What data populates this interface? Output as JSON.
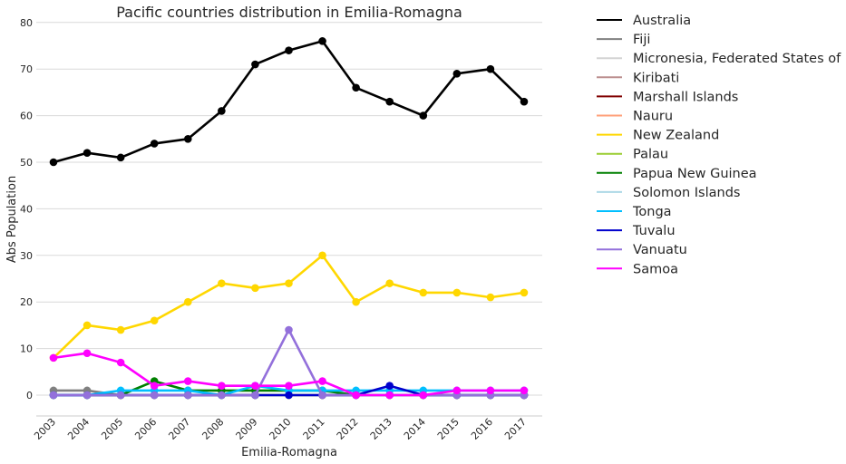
{
  "chart_data": {
    "type": "line",
    "title": "Pacific countries distribution in Emilia-Romagna",
    "xlabel": "Emilia-Romagna",
    "ylabel": "Abs Population",
    "categories": [
      "2003",
      "2004",
      "2005",
      "2006",
      "2007",
      "2008",
      "2009",
      "2010",
      "2011",
      "2012",
      "2013",
      "2014",
      "2015",
      "2016",
      "2017"
    ],
    "yticks": [
      0,
      10,
      20,
      30,
      40,
      50,
      60,
      70,
      80
    ],
    "ylim": [
      -4.5,
      80
    ],
    "grid": "horizontal",
    "legend_position": "outside-right",
    "series": [
      {
        "name": "Australia",
        "color": "#000000",
        "values": [
          50,
          52,
          51,
          54,
          55,
          61,
          71,
          74,
          76,
          66,
          63,
          60,
          69,
          70,
          63
        ]
      },
      {
        "name": "Fiji",
        "color": "#808080",
        "values": [
          1,
          1,
          0,
          0,
          0,
          0,
          0,
          0,
          0,
          0,
          0,
          0,
          0,
          0,
          0
        ]
      },
      {
        "name": "Micronesia, Federated States of",
        "color": "#d3d3d3",
        "values": [
          0,
          0,
          0,
          0,
          0,
          0,
          0,
          0,
          0,
          0,
          0,
          0,
          0,
          0,
          0
        ]
      },
      {
        "name": "Kiribati",
        "color": "#bc8f8f",
        "values": [
          0,
          0,
          0,
          0,
          0,
          0,
          0,
          0,
          0,
          0,
          0,
          0,
          0,
          0,
          0
        ]
      },
      {
        "name": "Marshall Islands",
        "color": "#800000",
        "values": [
          0,
          0,
          0,
          0,
          0,
          0,
          0,
          0,
          0,
          0,
          0,
          0,
          0,
          0,
          0
        ]
      },
      {
        "name": "Nauru",
        "color": "#ffa07a",
        "values": [
          0,
          0,
          0,
          0,
          0,
          0,
          0,
          0,
          0,
          0,
          0,
          0,
          0,
          0,
          0
        ]
      },
      {
        "name": "New Zealand",
        "color": "#ffd700",
        "values": [
          8,
          15,
          14,
          16,
          20,
          24,
          23,
          24,
          30,
          20,
          24,
          22,
          22,
          21,
          22
        ]
      },
      {
        "name": "Palau",
        "color": "#9acd32",
        "values": [
          0,
          0,
          0,
          0,
          0,
          0,
          0,
          0,
          0,
          0,
          0,
          0,
          0,
          0,
          0
        ]
      },
      {
        "name": "Papua New Guinea",
        "color": "#008000",
        "values": [
          0,
          0,
          0,
          3,
          1,
          1,
          1,
          1,
          1,
          0,
          0,
          0,
          0,
          0,
          0
        ]
      },
      {
        "name": "Solomon Islands",
        "color": "#add8e6",
        "values": [
          0,
          0,
          0,
          0,
          0,
          0,
          0,
          0,
          0,
          0,
          0,
          0,
          0,
          0,
          0
        ]
      },
      {
        "name": "Tonga",
        "color": "#00bfff",
        "values": [
          0,
          0,
          1,
          1,
          1,
          0,
          2,
          1,
          1,
          1,
          1,
          1,
          1,
          1,
          1
        ]
      },
      {
        "name": "Tuvalu",
        "color": "#0000cd",
        "values": [
          0,
          0,
          0,
          0,
          0,
          0,
          0,
          0,
          0,
          0,
          2,
          0,
          0,
          0,
          0
        ]
      },
      {
        "name": "Vanuatu",
        "color": "#9370db",
        "values": [
          0,
          0,
          0,
          0,
          0,
          0,
          0,
          14,
          0,
          0,
          0,
          0,
          0,
          0,
          0
        ]
      },
      {
        "name": "Samoa",
        "color": "#ff00ff",
        "values": [
          8,
          9,
          7,
          2,
          3,
          2,
          2,
          2,
          3,
          0,
          0,
          0,
          1,
          1,
          1
        ]
      }
    ]
  }
}
